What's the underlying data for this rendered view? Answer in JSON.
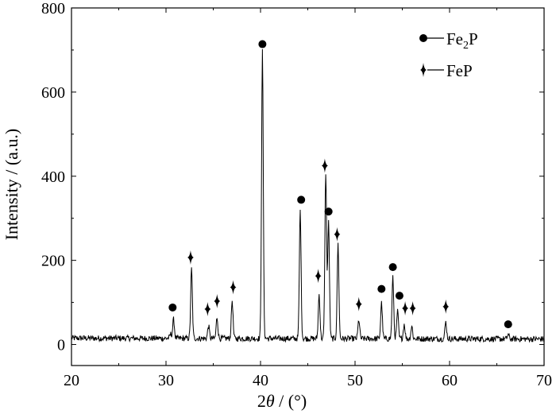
{
  "chart_data": {
    "type": "line",
    "xlabel_prefix": "2",
    "xlabel_symbol": "θ",
    "xlabel_suffix": " / (°)",
    "ylabel": "Intensity / (a.u.)",
    "xlim": [
      20,
      70
    ],
    "ylim": [
      -50,
      800
    ],
    "x_ticks": [
      20,
      30,
      40,
      50,
      60,
      70
    ],
    "y_ticks": [
      0,
      200,
      400,
      600,
      800
    ],
    "grid": false,
    "legend_position": "top-right",
    "legend": [
      {
        "marker": "circle",
        "label_main": "Fe",
        "label_sub": "2",
        "label_tail": "P"
      },
      {
        "marker": "four-point-star",
        "label_main": "FeP",
        "label_sub": "",
        "label_tail": ""
      }
    ],
    "line_color": "#000000",
    "baseline_intensity": 15,
    "peaks": [
      {
        "x": 30.5,
        "y": 25
      },
      {
        "x": 30.8,
        "y": 60
      },
      {
        "x": 32.7,
        "y": 180
      },
      {
        "x": 34.5,
        "y": 45
      },
      {
        "x": 35.4,
        "y": 65
      },
      {
        "x": 37.0,
        "y": 105
      },
      {
        "x": 40.2,
        "y": 697
      },
      {
        "x": 44.2,
        "y": 320
      },
      {
        "x": 46.2,
        "y": 120
      },
      {
        "x": 46.9,
        "y": 410
      },
      {
        "x": 47.2,
        "y": 290
      },
      {
        "x": 48.2,
        "y": 240
      },
      {
        "x": 50.4,
        "y": 60
      },
      {
        "x": 52.8,
        "y": 100
      },
      {
        "x": 54.0,
        "y": 160
      },
      {
        "x": 54.5,
        "y": 80
      },
      {
        "x": 55.2,
        "y": 50
      },
      {
        "x": 56.0,
        "y": 45
      },
      {
        "x": 59.6,
        "y": 55
      },
      {
        "x": 66.2,
        "y": 25
      }
    ],
    "markers": [
      {
        "phase": "Fe2P",
        "x": 30.7,
        "y": 88
      },
      {
        "phase": "FeP",
        "x": 32.6,
        "y": 207
      },
      {
        "phase": "FeP",
        "x": 34.4,
        "y": 84
      },
      {
        "phase": "FeP",
        "x": 35.4,
        "y": 103
      },
      {
        "phase": "FeP",
        "x": 37.1,
        "y": 136
      },
      {
        "phase": "Fe2P",
        "x": 40.2,
        "y": 714
      },
      {
        "phase": "Fe2P",
        "x": 44.3,
        "y": 344
      },
      {
        "phase": "FeP",
        "x": 46.1,
        "y": 163
      },
      {
        "phase": "FeP",
        "x": 46.8,
        "y": 425
      },
      {
        "phase": "Fe2P",
        "x": 47.2,
        "y": 316
      },
      {
        "phase": "FeP",
        "x": 48.1,
        "y": 262
      },
      {
        "phase": "FeP",
        "x": 50.4,
        "y": 96
      },
      {
        "phase": "Fe2P",
        "x": 52.8,
        "y": 132
      },
      {
        "phase": "Fe2P",
        "x": 54.0,
        "y": 184
      },
      {
        "phase": "Fe2P",
        "x": 54.7,
        "y": 116
      },
      {
        "phase": "FeP",
        "x": 55.3,
        "y": 86
      },
      {
        "phase": "FeP",
        "x": 56.1,
        "y": 86
      },
      {
        "phase": "FeP",
        "x": 59.6,
        "y": 90
      },
      {
        "phase": "Fe2P",
        "x": 66.2,
        "y": 48
      }
    ]
  }
}
